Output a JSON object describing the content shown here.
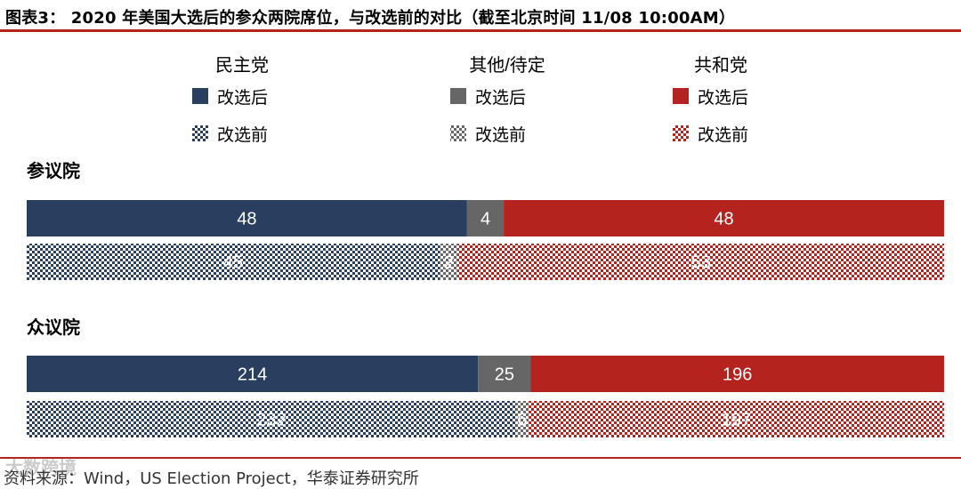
{
  "header": {
    "title": "图表3：  2020 年美国大选后的参众两院席位，与改选前的对比（截至北京时间 11/08 10:00AM）"
  },
  "colors": {
    "democrat": "#2a3f5f",
    "other": "#666666",
    "republican": "#b5231e",
    "rule": "#b5231e"
  },
  "chart_data": {
    "type": "bar",
    "orientation": "horizontal",
    "stacked": "100%",
    "legend": {
      "groups": [
        {
          "name": "民主党",
          "after": "改选后",
          "before": "改选前",
          "color_key": "democrat"
        },
        {
          "name": "其他/待定",
          "after": "改选后",
          "before": "改选前",
          "color_key": "other"
        },
        {
          "name": "共和党",
          "after": "改选后",
          "before": "改选前",
          "color_key": "republican"
        }
      ],
      "position": "top"
    },
    "charts": [
      {
        "title": "参议院",
        "rows": [
          {
            "label": "改选后",
            "pattern": "solid",
            "values": [
              48,
              4,
              48
            ]
          },
          {
            "label": "改选前",
            "pattern": "checker",
            "values": [
              45,
              2,
              53
            ]
          }
        ]
      },
      {
        "title": "众议院",
        "rows": [
          {
            "label": "改选后",
            "pattern": "solid",
            "values": [
              214,
              25,
              196
            ]
          },
          {
            "label": "改选前",
            "pattern": "checker",
            "values": [
              232,
              6,
              197
            ]
          }
        ]
      }
    ]
  },
  "source": "资料来源：Wind，US Election Project，华泰证券研究所",
  "watermark": "大数跨境"
}
